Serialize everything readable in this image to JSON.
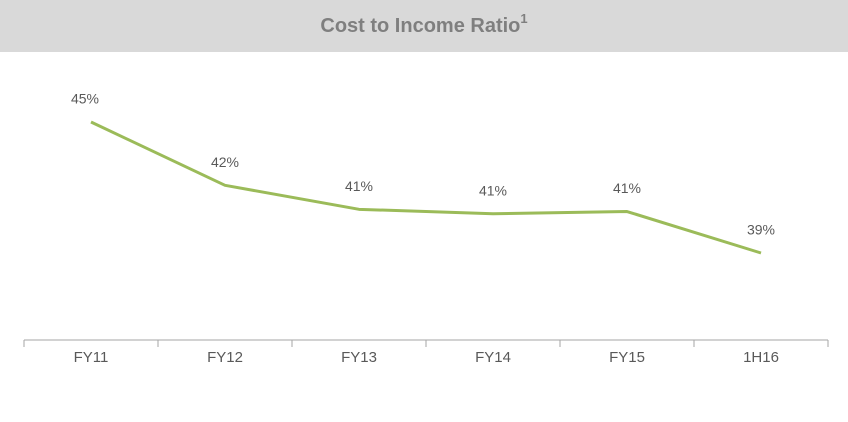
{
  "chart_data": {
    "type": "line",
    "title": "Cost to Income Ratio",
    "title_superscript": "1",
    "categories": [
      "FY11",
      "FY12",
      "FY13",
      "FY14",
      "FY15",
      "1H16"
    ],
    "values": [
      45,
      42.1,
      41,
      40.8,
      40.9,
      39
    ],
    "value_labels": [
      "45%",
      "42%",
      "41%",
      "41%",
      "41%",
      "39%"
    ],
    "color": "#9bbb59"
  }
}
